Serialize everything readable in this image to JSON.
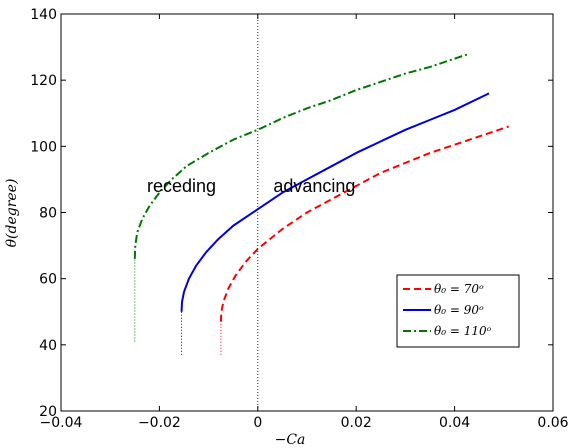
{
  "chart_data": {
    "type": "line",
    "title": "",
    "xlabel": "−Ca",
    "ylabel": "θ(degree)",
    "xlim": [
      -0.04,
      0.06
    ],
    "ylim": [
      20,
      140
    ],
    "xticks": [
      -0.04,
      -0.02,
      0,
      0.02,
      0.04,
      0.06
    ],
    "xtick_labels": [
      "−0.04",
      "−0.02",
      "0",
      "0.02",
      "0.04",
      "0.06"
    ],
    "yticks": [
      20,
      40,
      60,
      80,
      100,
      120,
      140
    ],
    "ytick_labels": [
      "20",
      "40",
      "60",
      "80",
      "100",
      "120",
      "140"
    ],
    "grid": false,
    "legend_position": "lower-right",
    "vertical_reference_line": 0,
    "annotations": [
      {
        "text": "receding",
        "x": -0.0155,
        "y": 88
      },
      {
        "text": "advancing",
        "x": 0.0115,
        "y": 88
      }
    ],
    "series": [
      {
        "name": "θ₀ = 70ᵒ",
        "color": "#ff0000",
        "style": "dashed",
        "x": [
          -0.0075,
          -0.0074,
          -0.007,
          -0.006,
          -0.0045,
          -0.0025,
          0.0,
          0.005,
          0.01,
          0.015,
          0.02,
          0.025,
          0.03,
          0.035,
          0.04,
          0.045,
          0.051
        ],
        "y": [
          47,
          50,
          53,
          57,
          61,
          65,
          69,
          75,
          80,
          84,
          88,
          92,
          95,
          98,
          100.5,
          103,
          106
        ],
        "tail": {
          "x": -0.0075,
          "y": [
            37,
            47
          ]
        }
      },
      {
        "name": "θ₀ = 90ᵒ",
        "color": "#0000dd",
        "style": "solid",
        "x": [
          -0.0155,
          -0.0154,
          -0.015,
          -0.014,
          -0.0125,
          -0.0105,
          -0.008,
          -0.005,
          0.0,
          0.005,
          0.01,
          0.015,
          0.02,
          0.025,
          0.03,
          0.035,
          0.04,
          0.047
        ],
        "y": [
          50,
          53,
          56,
          60,
          64,
          68,
          72,
          76,
          81,
          86,
          90,
          94,
          98,
          101.5,
          105,
          108,
          111,
          116
        ],
        "tail": {
          "x": -0.0155,
          "y": [
            37,
            50
          ]
        }
      },
      {
        "name": "θ₀ = 110ᵒ",
        "color": "#007700",
        "style": "dashdot",
        "x": [
          -0.025,
          -0.0249,
          -0.0245,
          -0.0235,
          -0.022,
          -0.02,
          -0.0175,
          -0.0145,
          -0.01,
          -0.005,
          0.0,
          0.005,
          0.01,
          0.015,
          0.02,
          0.025,
          0.03,
          0.035,
          0.043
        ],
        "y": [
          66,
          70,
          74,
          78,
          82,
          86,
          90,
          94,
          98,
          102,
          105,
          108.5,
          111.5,
          114,
          117,
          119.5,
          122,
          124,
          128
        ],
        "tail": {
          "x": -0.025,
          "y": [
            41,
            66
          ]
        }
      }
    ]
  }
}
